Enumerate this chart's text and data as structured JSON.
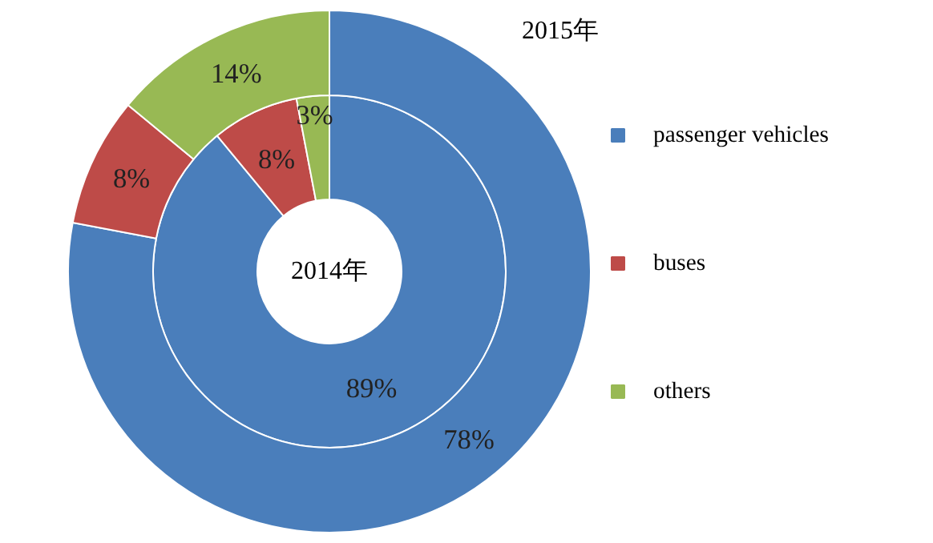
{
  "chart_data": {
    "type": "donut",
    "categories": [
      "passenger vehicles",
      "buses",
      "others"
    ],
    "colors": [
      "#4a7ebb",
      "#be4b48",
      "#98b954"
    ],
    "series": [
      {
        "name": "2014年",
        "values": [
          89,
          8,
          3
        ],
        "value_labels": [
          "89%",
          "8%",
          "3%"
        ]
      },
      {
        "name": "2015年",
        "values": [
          78,
          8,
          14
        ],
        "value_labels": [
          "78%",
          "8%",
          "14%"
        ]
      }
    ],
    "legend": "right"
  }
}
